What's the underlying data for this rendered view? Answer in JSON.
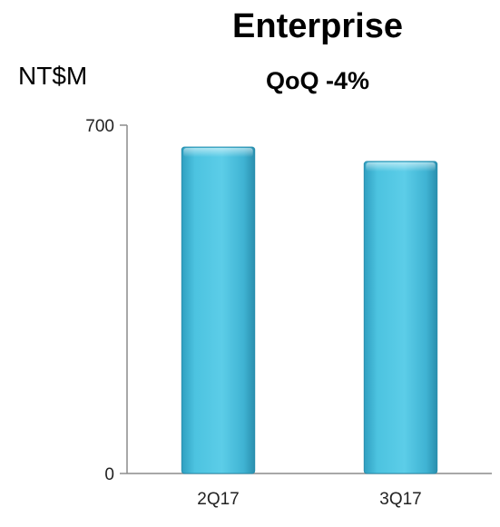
{
  "chart_data": {
    "type": "bar",
    "title": "Enterprise",
    "subtitle": "QoQ -4%",
    "ylabel": "NT$M",
    "xlabel": "",
    "categories": [
      "2Q17",
      "3Q17"
    ],
    "values": [
      656,
      627
    ],
    "ylim": [
      0,
      700
    ],
    "yticks": [
      0,
      700
    ],
    "grid": false,
    "legend": "none",
    "bar_color": "#4cc3e0"
  }
}
